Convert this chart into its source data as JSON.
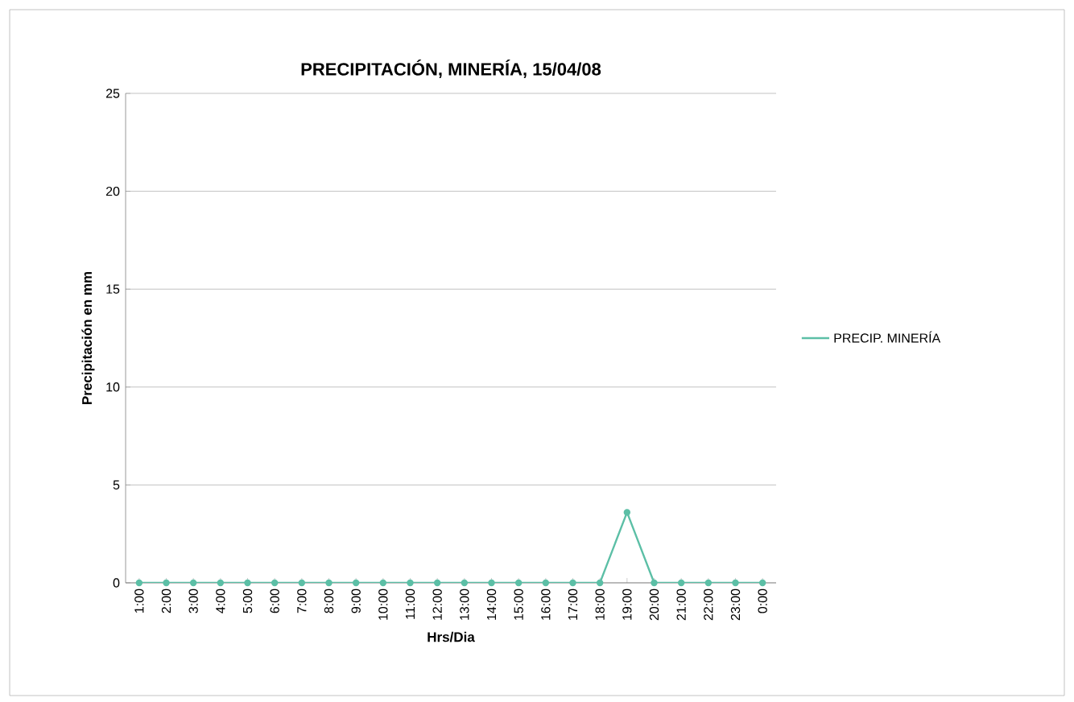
{
  "chart_data": {
    "type": "line",
    "title": "PRECIPITACIÓN, MINERÍA, 15/04/08",
    "xlabel": "Hrs/Dia",
    "ylabel": "Precipitación en mm",
    "categories": [
      "1:00",
      "2:00",
      "3:00",
      "4:00",
      "5:00",
      "6:00",
      "7:00",
      "8:00",
      "9:00",
      "10:00",
      "11:00",
      "12:00",
      "13:00",
      "14:00",
      "15:00",
      "16:00",
      "17:00",
      "18:00",
      "19:00",
      "20:00",
      "21:00",
      "22:00",
      "23:00",
      "0:00"
    ],
    "series": [
      {
        "name": "PRECIP. MINERÍA",
        "color": "#5cbfa6",
        "values": [
          0,
          0,
          0,
          0,
          0,
          0,
          0,
          0,
          0,
          0,
          0,
          0,
          0,
          0,
          0,
          0,
          0,
          0,
          3.6,
          0,
          0,
          0,
          0,
          0
        ]
      }
    ],
    "ylim": [
      0,
      25
    ],
    "yticks": [
      0,
      5,
      10,
      15,
      20,
      25
    ],
    "grid": "y",
    "legend": "right",
    "marker": "circle",
    "line_style": "solid"
  }
}
